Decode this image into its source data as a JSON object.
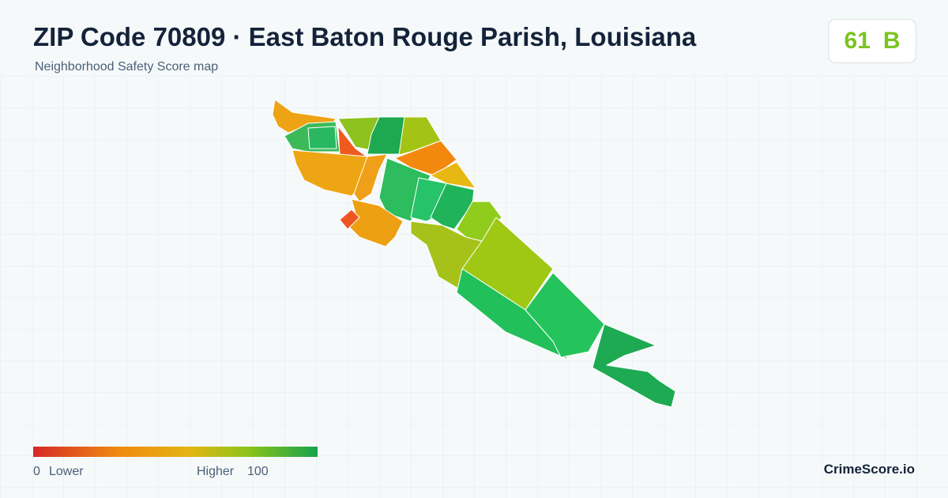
{
  "header": {
    "title": "ZIP Code 70809 · East Baton Rouge Parish, Louisiana",
    "subtitle": "Neighborhood Safety Score map"
  },
  "badge": {
    "score": "61",
    "grade": "B"
  },
  "legend": {
    "min": "0",
    "min_label": "Lower",
    "max_label": "Higher",
    "max": "100"
  },
  "brand": "CrimeScore.io"
}
